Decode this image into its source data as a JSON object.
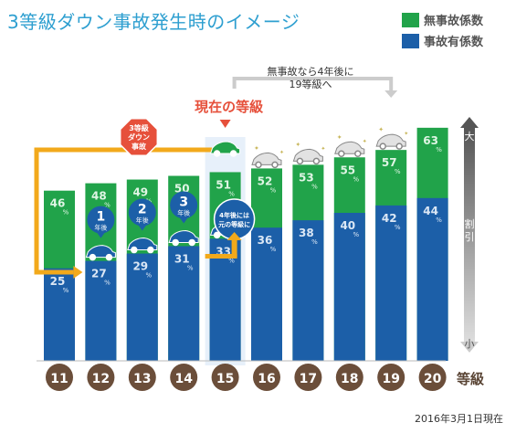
{
  "title": "3等級ダウン事故発生時のイメージ",
  "legend": [
    {
      "label": "無事故係数",
      "color": "#21a34a"
    },
    {
      "label": "事故有係数",
      "color": "#1c5fa8"
    }
  ],
  "chart_data": {
    "type": "bar",
    "categories": [
      "11",
      "12",
      "13",
      "14",
      "15",
      "16",
      "17",
      "18",
      "19",
      "20"
    ],
    "series": [
      {
        "name": "無事故係数",
        "values": [
          46,
          48,
          49,
          50,
          51,
          52,
          53,
          55,
          57,
          63
        ],
        "color": "#21a34a"
      },
      {
        "name": "事故有係数",
        "values": [
          25,
          27,
          29,
          31,
          33,
          36,
          38,
          40,
          42,
          44
        ],
        "color": "#1c5fa8"
      }
    ],
    "unit": "%",
    "axis_label": "等級",
    "scale_top": "大",
    "scale_bottom": "小",
    "scale_label": [
      "割",
      "引"
    ],
    "grid": false
  },
  "annotations": {
    "accident_badge": [
      "3等級",
      "ダウン",
      "事故"
    ],
    "current_grade": "現在の等級",
    "year_badges": [
      {
        "number": "1",
        "sub": "年後"
      },
      {
        "number": "2",
        "sub": "年後"
      },
      {
        "number": "3",
        "sub": "年後"
      }
    ],
    "return_badge": [
      "4年後には",
      "元の等級に"
    ],
    "no_accident_note": [
      "無事故なら4年後に",
      "19等級へ"
    ]
  },
  "date_note": "2016年3月1日現在"
}
